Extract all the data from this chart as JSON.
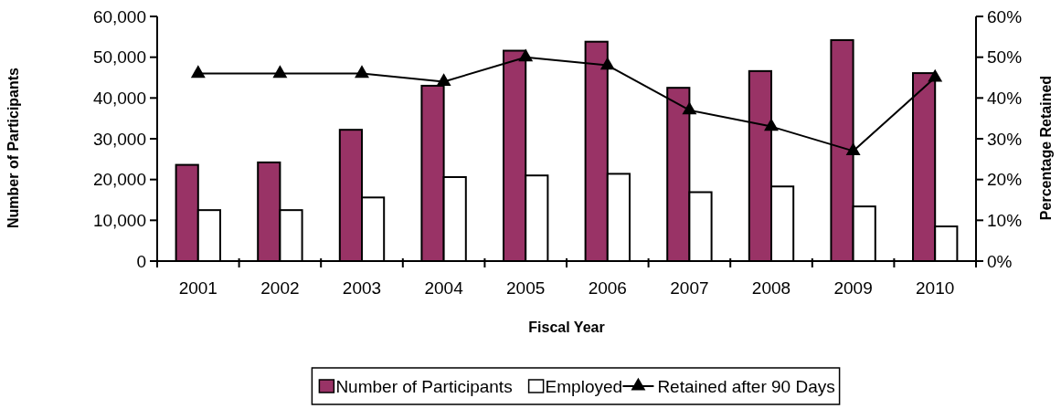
{
  "chart_data": {
    "type": "bar",
    "xlabel": "Fiscal Year",
    "ylabel": "Number of Participants",
    "y2label": "Percentage Retained",
    "categories": [
      "2001",
      "2002",
      "2003",
      "2004",
      "2005",
      "2006",
      "2007",
      "2008",
      "2009",
      "2010"
    ],
    "series": [
      {
        "name": "Number of Participants",
        "color": "#993366",
        "values": [
          23600,
          24200,
          32200,
          43000,
          51600,
          53800,
          42500,
          46600,
          54200,
          46100
        ]
      },
      {
        "name": "Employed",
        "color": "#ffffff",
        "values": [
          12500,
          12500,
          15600,
          20600,
          21000,
          21400,
          16900,
          18300,
          13400,
          8500
        ]
      },
      {
        "name": "Retained after 90 Days",
        "type": "line",
        "axis": "y2",
        "color": "#000000",
        "marker": "triangle",
        "values": [
          46,
          46,
          46,
          44,
          50,
          48,
          37,
          33,
          27,
          45
        ]
      }
    ],
    "ylim": [
      0,
      60000
    ],
    "yticks": [
      {
        "value": 0,
        "label": "0"
      },
      {
        "value": 10000,
        "label": "10,000"
      },
      {
        "value": 20000,
        "label": "20,000"
      },
      {
        "value": 30000,
        "label": "30,000"
      },
      {
        "value": 40000,
        "label": "40,000"
      },
      {
        "value": 50000,
        "label": "50,000"
      },
      {
        "value": 60000,
        "label": "60,000"
      }
    ],
    "y2lim": [
      0,
      60
    ],
    "y2ticks": [
      {
        "value": 0,
        "label": "0%"
      },
      {
        "value": 10,
        "label": "10%"
      },
      {
        "value": 20,
        "label": "20%"
      },
      {
        "value": 30,
        "label": "30%"
      },
      {
        "value": 40,
        "label": "40%"
      },
      {
        "value": 50,
        "label": "50%"
      },
      {
        "value": 60,
        "label": "60%"
      }
    ],
    "legend": "bottom",
    "grid": false
  }
}
